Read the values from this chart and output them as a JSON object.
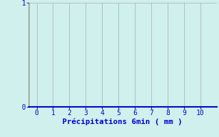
{
  "title": "",
  "xlabel": "Précipitations 6min ( mm )",
  "ylabel": "",
  "xlim": [
    -0.5,
    11
  ],
  "ylim": [
    0,
    1
  ],
  "xticks": [
    0,
    1,
    2,
    3,
    4,
    5,
    6,
    7,
    8,
    9,
    10
  ],
  "yticks": [
    0,
    1
  ],
  "background_color": "#cff0ec",
  "grid_color": "#aaaaaa",
  "axis_color": "#0000cc",
  "tick_label_color": "#0000cc",
  "xlabel_color": "#0000cc",
  "spine_left_color": "#888888",
  "spine_bottom_color": "#0000cc",
  "xlabel_fontsize": 8,
  "tick_fontsize": 7
}
